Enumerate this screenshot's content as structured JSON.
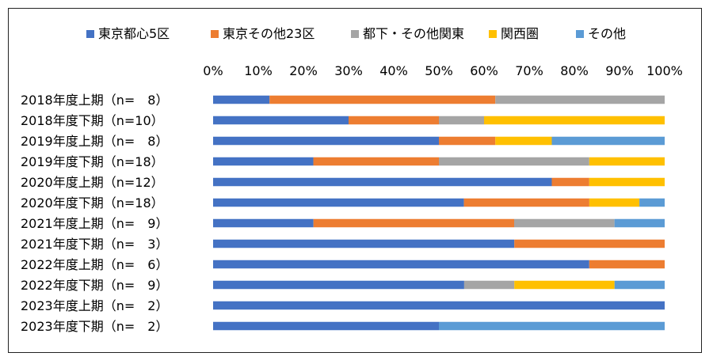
{
  "chart_data": {
    "type": "bar",
    "orientation": "horizontal",
    "stacked": "percent",
    "legend_position": "top",
    "grid": false,
    "xlim": [
      0,
      100
    ],
    "ticks": [
      "0%",
      "10%",
      "20%",
      "30%",
      "40%",
      "50%",
      "60%",
      "70%",
      "80%",
      "90%",
      "100%"
    ],
    "categories": [
      "2018年度上期（n=　8）",
      "2018年度下期（n=10）",
      "2019年度上期（n=　8）",
      "2019年度下期（n=18）",
      "2020年度上期（n=12）",
      "2020年度下期（n=18）",
      "2021年度上期（n=　9）",
      "2021年度下期（n=　3）",
      "2022年度上期（n=　6）",
      "2022年度下期（n=　9）",
      "2023年度上期（n=　2）",
      "2023年度下期（n=　2）"
    ],
    "series": [
      {
        "name": "東京都心5区",
        "color": "#4472C4",
        "values": [
          12.5,
          30,
          50,
          22.2,
          75,
          55.6,
          22.2,
          66.7,
          83.3,
          55.6,
          100,
          50
        ]
      },
      {
        "name": "東京その他23区",
        "color": "#ED7D31",
        "values": [
          50,
          20,
          12.5,
          27.8,
          8.3,
          27.8,
          44.4,
          33.3,
          16.7,
          0,
          0,
          0
        ]
      },
      {
        "name": "都下・その他関東",
        "color": "#A5A5A5",
        "values": [
          37.5,
          10,
          0,
          33.3,
          0,
          0,
          22.2,
          0,
          0,
          11.1,
          0,
          0
        ]
      },
      {
        "name": "関西圏",
        "color": "#FFC000",
        "values": [
          0,
          40,
          12.5,
          16.7,
          16.7,
          11.1,
          0,
          0,
          0,
          22.2,
          0,
          0
        ]
      },
      {
        "name": "その他",
        "color": "#5B9BD5",
        "values": [
          0,
          0,
          25,
          0,
          0,
          5.6,
          11.1,
          0,
          0,
          11.1,
          0,
          50
        ]
      }
    ]
  }
}
